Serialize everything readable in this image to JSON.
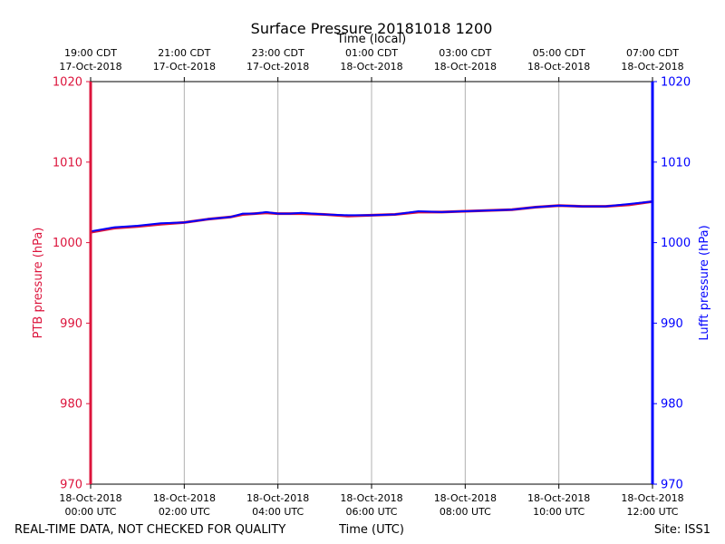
{
  "chart_data": {
    "type": "line",
    "title": "Surface Pressure 20181018 1200",
    "top_axis_label": "Time (local)",
    "xlabel": "Time (UTC)",
    "ylabel_left": "PTB pressure (hPa)",
    "ylabel_right": "Lufft pressure (hPa)",
    "ylim": [
      970,
      1020
    ],
    "yticks": [
      970,
      980,
      990,
      1000,
      1010,
      1020
    ],
    "xlim_hours": [
      0,
      12
    ],
    "grid": "vertical",
    "bottom_ticks": [
      {
        "hour": 0,
        "line1": "18-Oct-2018",
        "line2": "00:00 UTC"
      },
      {
        "hour": 2,
        "line1": "18-Oct-2018",
        "line2": "02:00 UTC"
      },
      {
        "hour": 4,
        "line1": "18-Oct-2018",
        "line2": "04:00 UTC"
      },
      {
        "hour": 6,
        "line1": "18-Oct-2018",
        "line2": "06:00 UTC"
      },
      {
        "hour": 8,
        "line1": "18-Oct-2018",
        "line2": "08:00 UTC"
      },
      {
        "hour": 10,
        "line1": "18-Oct-2018",
        "line2": "10:00 UTC"
      },
      {
        "hour": 12,
        "line1": "18-Oct-2018",
        "line2": "12:00 UTC"
      }
    ],
    "top_ticks": [
      {
        "hour": 0,
        "line1": "19:00 CDT",
        "line2": "17-Oct-2018"
      },
      {
        "hour": 2,
        "line1": "21:00 CDT",
        "line2": "17-Oct-2018"
      },
      {
        "hour": 4,
        "line1": "23:00 CDT",
        "line2": "17-Oct-2018"
      },
      {
        "hour": 6,
        "line1": "01:00 CDT",
        "line2": "18-Oct-2018"
      },
      {
        "hour": 8,
        "line1": "03:00 CDT",
        "line2": "18-Oct-2018"
      },
      {
        "hour": 10,
        "line1": "05:00 CDT",
        "line2": "18-Oct-2018"
      },
      {
        "hour": 12,
        "line1": "07:00 CDT",
        "line2": "18-Oct-2018"
      }
    ],
    "series": [
      {
        "name": "PTB pressure",
        "axis": "left",
        "color": "#dc143c",
        "x_hours": [
          0,
          0.5,
          1,
          1.5,
          2,
          2.5,
          3,
          3.25,
          3.5,
          3.75,
          4,
          4.25,
          4.5,
          5,
          5.5,
          6,
          6.5,
          7,
          7.5,
          8,
          8.5,
          9,
          9.5,
          10,
          10.5,
          11,
          11.5,
          12
        ],
        "values": [
          1001.3,
          1001.8,
          1002.0,
          1002.3,
          1002.5,
          1002.9,
          1003.2,
          1003.5,
          1003.6,
          1003.7,
          1003.6,
          1003.6,
          1003.6,
          1003.5,
          1003.3,
          1003.4,
          1003.5,
          1003.8,
          1003.8,
          1003.9,
          1004.0,
          1004.1,
          1004.4,
          1004.6,
          1004.5,
          1004.5,
          1004.7,
          1005.1
        ]
      },
      {
        "name": "Lufft pressure",
        "axis": "right",
        "color": "#0000ff",
        "x_hours": [
          0,
          0.5,
          1,
          1.5,
          2,
          2.5,
          3,
          3.25,
          3.5,
          3.75,
          4,
          4.25,
          4.5,
          5,
          5.5,
          6,
          6.5,
          7,
          7.5,
          8,
          8.5,
          9,
          9.5,
          10,
          10.5,
          11,
          11.5,
          12
        ],
        "values": [
          1001.4,
          1001.9,
          1002.1,
          1002.4,
          1002.5,
          1002.9,
          1003.2,
          1003.6,
          1003.6,
          1003.8,
          1003.6,
          1003.6,
          1003.7,
          1003.5,
          1003.4,
          1003.4,
          1003.5,
          1003.9,
          1003.8,
          1003.9,
          1004.0,
          1004.1,
          1004.4,
          1004.6,
          1004.5,
          1004.5,
          1004.8,
          1005.1
        ]
      }
    ]
  },
  "footer": {
    "quality_note": "REAL-TIME DATA, NOT CHECKED FOR QUALITY",
    "site": "Site: ISS1"
  }
}
